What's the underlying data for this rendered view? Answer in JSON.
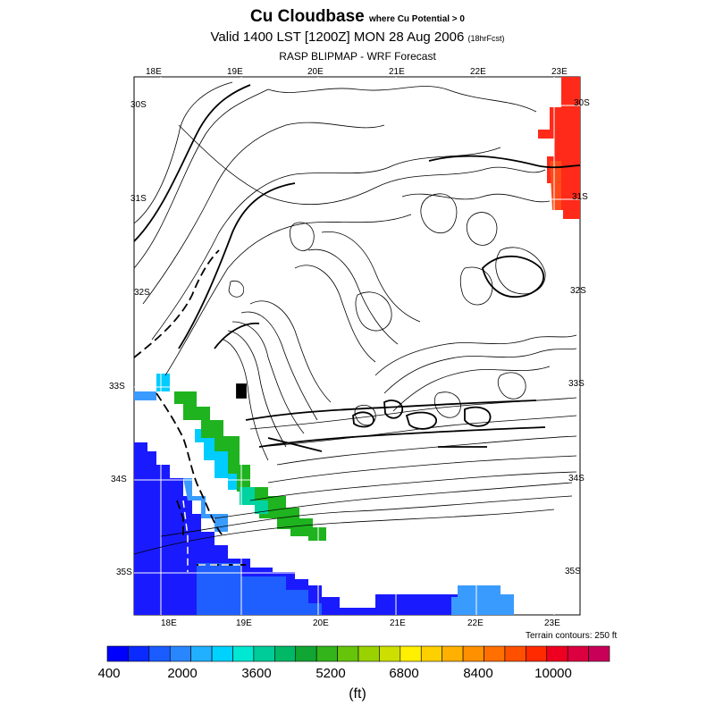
{
  "header": {
    "title": "Cu Cloudbase",
    "title_qualifier": "where Cu Potential > 0",
    "valid_line": "Valid 1400 LST [1200Z] MON 28 Aug 2006",
    "forecast_hour": "(18hrFcst)",
    "model_line": "RASP BLIPMAP - WRF Forecast"
  },
  "map": {
    "lon_labels_top": [
      "18E",
      "19E",
      "20E",
      "21E",
      "22E",
      "23E"
    ],
    "lon_labels_bottom": [
      "18E",
      "19E",
      "20E",
      "21E",
      "22E",
      "23E"
    ],
    "lat_labels_left": [
      "30S",
      "31S",
      "32S",
      "33S",
      "34S",
      "35S"
    ],
    "lat_labels_right": [
      "30S",
      "31S",
      "32S",
      "33S",
      "34S",
      "35S"
    ],
    "terrain_note": "Terrain contours: 250 ft",
    "colors": {
      "blue_dark": "#1a1aff",
      "blue_mid": "#1f5fff",
      "blue_light": "#3a9bff",
      "cyan": "#00ccff",
      "green": "#1fb31f",
      "red": "#ff2a1a",
      "orange_red": "#ff4a1a"
    }
  },
  "colorbar": {
    "tick_labels": [
      "400",
      "2000",
      "3600",
      "5200",
      "6800",
      "8400",
      "10000"
    ],
    "units": "(ft)",
    "colors": [
      "#0000ff",
      "#0a2aff",
      "#1a5cff",
      "#2a86ff",
      "#20b0ff",
      "#00d2ff",
      "#00e8d2",
      "#00cc99",
      "#00b866",
      "#11a633",
      "#33b41a",
      "#66c40a",
      "#99d200",
      "#ccdf00",
      "#ffef00",
      "#ffd000",
      "#ffb000",
      "#ff9000",
      "#ff7000",
      "#ff5000",
      "#ff2a00",
      "#f00020",
      "#dd0040",
      "#c80058"
    ]
  }
}
